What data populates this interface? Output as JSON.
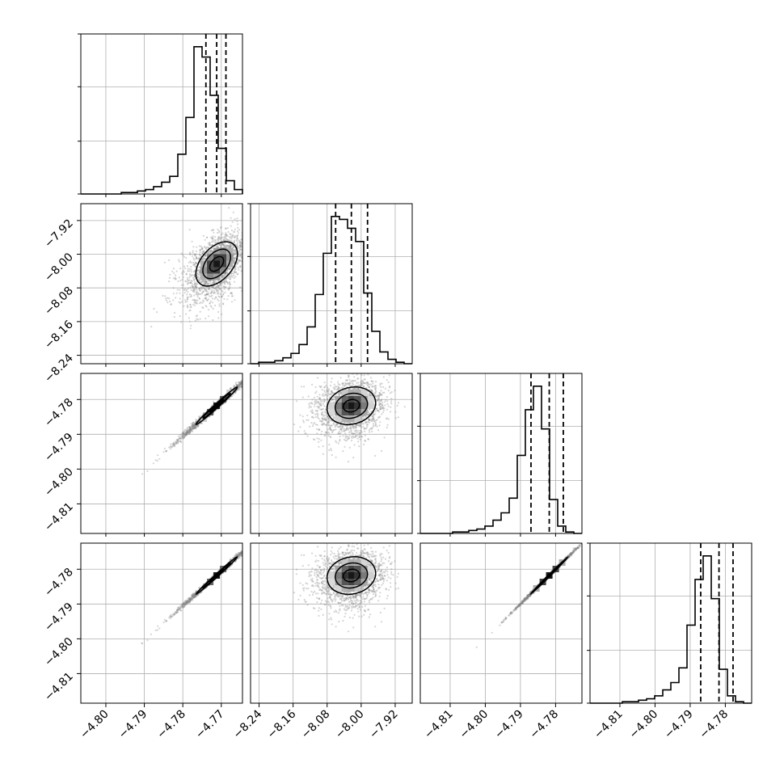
{
  "chart_data": {
    "type": "corner",
    "colors": {
      "line": "#000000",
      "grid": "#b0b0b0",
      "scatter": "#888888",
      "density": "#000000"
    },
    "parameters": [
      {
        "range": [
          -4.8065,
          -4.7645
        ],
        "quantiles": [
          -4.774,
          -4.7712,
          -4.7688
        ],
        "tick_values": [
          -4.8,
          -4.79,
          -4.78,
          -4.77
        ],
        "tick_labels": [
          "−4.80",
          "−4.79",
          "−4.78",
          "−4.77"
        ],
        "hist": [
          0,
          0,
          0,
          0,
          0,
          1,
          1,
          2,
          3,
          5,
          8,
          12,
          27,
          52,
          100,
          93,
          67,
          31,
          9,
          3
        ]
      },
      {
        "range": [
          -8.26,
          -7.88
        ],
        "quantiles": [
          -8.06,
          -8.023,
          -7.985
        ],
        "tick_values": [
          -8.24,
          -8.16,
          -8.08,
          -8.0,
          -7.92
        ],
        "tick_labels": [
          "−8.24",
          "−8.16",
          "−8.08",
          "−8.00",
          "−7.92"
        ],
        "hist": [
          0,
          1,
          1,
          2,
          4,
          7,
          13,
          25,
          47,
          75,
          100,
          98,
          92,
          83,
          48,
          22,
          8,
          3,
          1,
          0
        ]
      },
      {
        "range": [
          -4.8185,
          -4.7725
        ],
        "quantiles": [
          -4.787,
          -4.7818,
          -4.7778
        ],
        "tick_values": [
          -4.81,
          -4.8,
          -4.79,
          -4.78
        ],
        "tick_labels": [
          "−4.81",
          "−4.80",
          "−4.79",
          "−4.78"
        ],
        "hist": [
          0,
          0,
          0,
          0,
          1,
          1,
          2,
          3,
          5,
          9,
          14,
          24,
          53,
          84,
          100,
          71,
          23,
          5,
          1,
          0
        ]
      },
      {
        "range": [
          -4.8185,
          -4.7725
        ],
        "quantiles": [
          -4.787,
          -4.7818,
          -4.7778
        ],
        "tick_values": [
          -4.81,
          -4.8,
          -4.79,
          -4.78
        ],
        "tick_labels": [
          "−4.81",
          "−4.80",
          "−4.79",
          "−4.78"
        ],
        "hist": [
          0,
          0,
          0,
          0,
          1,
          1,
          2,
          3,
          5,
          9,
          14,
          24,
          53,
          84,
          100,
          71,
          23,
          5,
          1,
          0
        ]
      }
    ],
    "pairs": [
      {
        "row": 1,
        "col": 0,
        "center": [
          -4.7712,
          -8.023
        ],
        "sd": [
          0.0036,
          0.035
        ],
        "corr": 0.45,
        "skew": [
          -2.2,
          -1.2
        ]
      },
      {
        "row": 2,
        "col": 0,
        "center": [
          -4.7712,
          -4.7818
        ],
        "sd": [
          0.0036,
          0.0036
        ],
        "corr": 0.99,
        "skew": [
          -2.2,
          -2.2
        ]
      },
      {
        "row": 3,
        "col": 0,
        "center": [
          -4.7712,
          -4.7818
        ],
        "sd": [
          0.0036,
          0.0036
        ],
        "corr": 0.995,
        "skew": [
          -2.2,
          -2.2
        ]
      },
      {
        "row": 2,
        "col": 1,
        "center": [
          -8.023,
          -4.7818
        ],
        "sd": [
          0.038,
          0.0036
        ],
        "corr": 0.15,
        "skew": [
          -1.2,
          -2.2
        ]
      },
      {
        "row": 3,
        "col": 1,
        "center": [
          -8.023,
          -4.7818
        ],
        "sd": [
          0.038,
          0.0036
        ],
        "corr": 0.12,
        "skew": [
          -1.2,
          -2.2
        ]
      },
      {
        "row": 3,
        "col": 2,
        "center": [
          -4.7818,
          -4.7818
        ],
        "sd": [
          0.0036,
          0.0036
        ],
        "corr": 0.998,
        "skew": [
          -2.2,
          -2.2
        ]
      }
    ],
    "grid": true,
    "contour_levels_sigma": [
      0.5,
      1.0,
      1.5
    ]
  }
}
